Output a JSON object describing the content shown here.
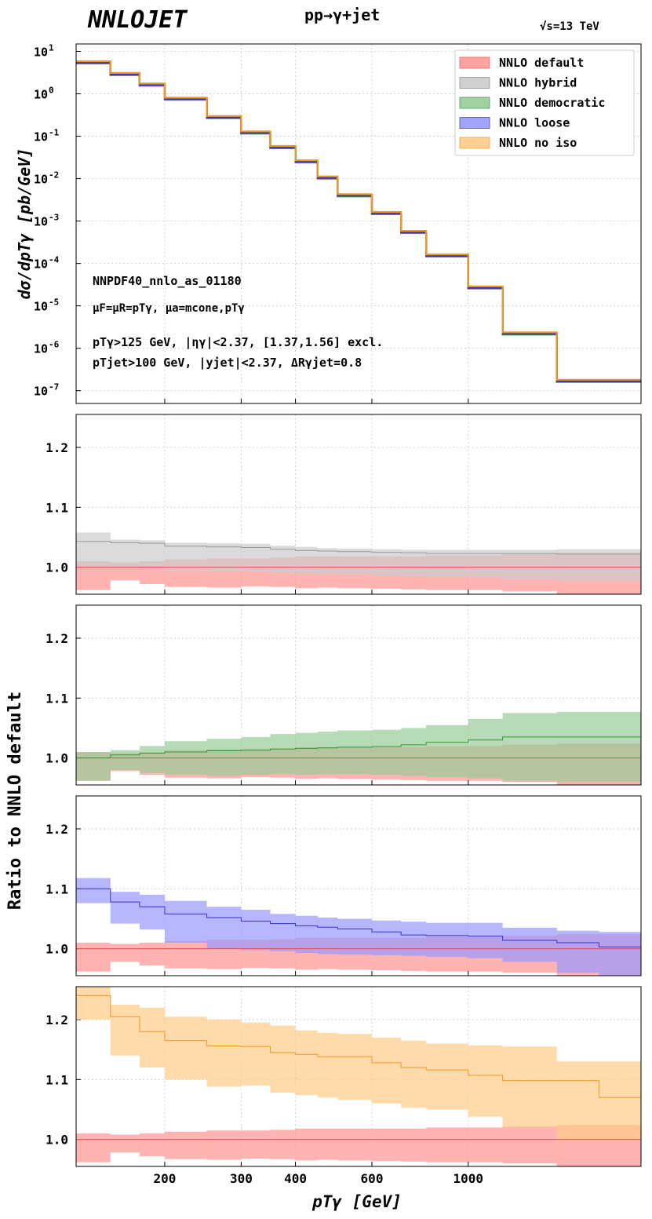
{
  "header": {
    "brand": "NNLOJET",
    "process": "pp→γ+jet",
    "energy": "√s=13 TeV"
  },
  "annotations": {
    "pdf": "NNPDF40_nnlo_as_01180",
    "scales": "μF=μR=pTγ, μa=mcone,pTγ",
    "cuts_photon": "pTγ>125 GeV, |ηγ|<2.37, [1.37,1.56] excl.",
    "cuts_jet": "pTjet>100 GeV, |yjet|<2.37, ΔRγjet=0.8"
  },
  "chart_data": {
    "type": "line",
    "xlabel": "pTγ [GeV]",
    "ylabel_top": "dσ/dpTγ [pb/GeV]",
    "ylabel_ratio": "Ratio to NNLO default",
    "xscale": "log",
    "xlim": [
      125,
      2500
    ],
    "xticks": [
      200,
      300,
      400,
      600,
      1000
    ],
    "bin_edges": [
      125,
      150,
      175,
      200,
      250,
      300,
      350,
      400,
      450,
      500,
      600,
      700,
      800,
      1000,
      1200,
      1600,
      2000,
      2500
    ],
    "top_panel": {
      "yscale": "log",
      "ylim": [
        5e-08,
        15
      ],
      "yticks": [
        "10^1",
        "10^0",
        "10^-1",
        "10^-2",
        "10^-3",
        "10^-4",
        "10^-5",
        "10^-6",
        "10^-7"
      ],
      "values": [
        5.2,
        2.75,
        1.55,
        0.72,
        0.265,
        0.115,
        0.052,
        0.024,
        0.01,
        0.0038,
        0.00145,
        0.00052,
        0.000145,
        2.55e-05,
        2.1e-06,
        1.6e-07,
        1.6e-07
      ],
      "legend_position": "top-right",
      "series": [
        {
          "name": "NNLO default",
          "color": "#ff9999",
          "line": "#e05050",
          "offset": 1.0
        },
        {
          "name": "NNLO hybrid",
          "color": "#cccccc",
          "line": "#888888",
          "offset": 1.03
        },
        {
          "name": "NNLO democratic",
          "color": "#99cc99",
          "line": "#339933",
          "offset": 1.02
        },
        {
          "name": "NNLO loose",
          "color": "#9999ff",
          "line": "#3333cc",
          "offset": 1.05
        },
        {
          "name": "NNLO no iso",
          "color": "#ffcc88",
          "line": "#ee9922",
          "offset": 1.13
        }
      ]
    },
    "ratio_panels": {
      "ylim": [
        0.955,
        1.255
      ],
      "yticks": [
        1.0,
        1.1,
        1.2
      ],
      "reference": {
        "name": "NNLO default",
        "central": [
          1.0,
          1.0,
          1.0,
          1.0,
          1.0,
          1.0,
          1.0,
          1.0,
          1.0,
          1.0,
          1.0,
          1.0,
          1.0,
          1.0,
          1.0,
          1.0,
          1.0
        ],
        "lower": [
          0.962,
          0.978,
          0.972,
          0.967,
          0.966,
          0.968,
          0.967,
          0.965,
          0.966,
          0.965,
          0.964,
          0.963,
          0.962,
          0.962,
          0.96,
          0.955,
          0.955
        ],
        "upper": [
          1.01,
          1.008,
          1.01,
          1.013,
          1.015,
          1.015,
          1.016,
          1.018,
          1.018,
          1.018,
          1.018,
          1.018,
          1.02,
          1.02,
          1.022,
          1.024,
          1.024
        ]
      },
      "panels": [
        {
          "name": "NNLO hybrid",
          "color": "#cccccc",
          "line": "#999999",
          "central": [
            1.043,
            1.041,
            1.04,
            1.035,
            1.034,
            1.033,
            1.03,
            1.028,
            1.027,
            1.026,
            1.025,
            1.024,
            1.023,
            1.023,
            1.023,
            1.022,
            1.022
          ],
          "lower": [
            1.0,
            1.0,
            0.998,
            0.995,
            0.994,
            0.993,
            0.991,
            0.99,
            0.989,
            0.988,
            0.986,
            0.985,
            0.984,
            0.983,
            0.98,
            0.978,
            0.978
          ],
          "upper": [
            1.058,
            1.046,
            1.045,
            1.041,
            1.04,
            1.039,
            1.036,
            1.034,
            1.032,
            1.031,
            1.03,
            1.029,
            1.029,
            1.029,
            1.029,
            1.03,
            1.03
          ]
        },
        {
          "name": "NNLO democratic",
          "color": "#99cc99",
          "line": "#339933",
          "central": [
            1.0,
            1.005,
            1.008,
            1.01,
            1.012,
            1.013,
            1.015,
            1.016,
            1.017,
            1.018,
            1.019,
            1.022,
            1.026,
            1.03,
            1.035,
            1.035,
            1.035
          ],
          "lower": [
            0.962,
            0.98,
            0.975,
            0.972,
            0.97,
            0.972,
            0.973,
            0.972,
            0.973,
            0.973,
            0.972,
            0.97,
            0.968,
            0.966,
            0.962,
            0.96,
            0.96
          ],
          "upper": [
            1.01,
            1.013,
            1.02,
            1.028,
            1.032,
            1.035,
            1.04,
            1.042,
            1.044,
            1.046,
            1.047,
            1.05,
            1.055,
            1.065,
            1.075,
            1.077,
            1.077
          ]
        },
        {
          "name": "NNLO loose",
          "color": "#9999ff",
          "line": "#3333cc",
          "central": [
            1.1,
            1.078,
            1.07,
            1.058,
            1.052,
            1.046,
            1.042,
            1.038,
            1.036,
            1.033,
            1.028,
            1.023,
            1.022,
            1.021,
            1.014,
            1.01,
            1.003
          ],
          "lower": [
            1.076,
            1.042,
            1.032,
            1.01,
            1.0,
            0.998,
            0.996,
            0.993,
            0.991,
            0.99,
            0.989,
            0.988,
            0.986,
            0.984,
            0.978,
            0.96,
            0.955
          ],
          "upper": [
            1.118,
            1.095,
            1.09,
            1.08,
            1.07,
            1.065,
            1.058,
            1.055,
            1.052,
            1.05,
            1.047,
            1.045,
            1.043,
            1.043,
            1.035,
            1.03,
            1.028
          ]
        },
        {
          "name": "NNLO no iso",
          "color": "#ffcc88",
          "line": "#ee9922",
          "central": [
            1.24,
            1.205,
            1.18,
            1.165,
            1.156,
            1.155,
            1.145,
            1.142,
            1.138,
            1.138,
            1.128,
            1.12,
            1.116,
            1.107,
            1.098,
            1.098,
            1.07
          ],
          "lower": [
            1.2,
            1.14,
            1.12,
            1.1,
            1.088,
            1.09,
            1.078,
            1.074,
            1.07,
            1.066,
            1.06,
            1.053,
            1.05,
            1.038,
            1.02,
            0.998,
            0.998
          ],
          "upper": [
            1.255,
            1.225,
            1.22,
            1.205,
            1.2,
            1.195,
            1.19,
            1.182,
            1.178,
            1.176,
            1.17,
            1.165,
            1.16,
            1.157,
            1.155,
            1.13,
            1.13
          ]
        }
      ]
    }
  }
}
